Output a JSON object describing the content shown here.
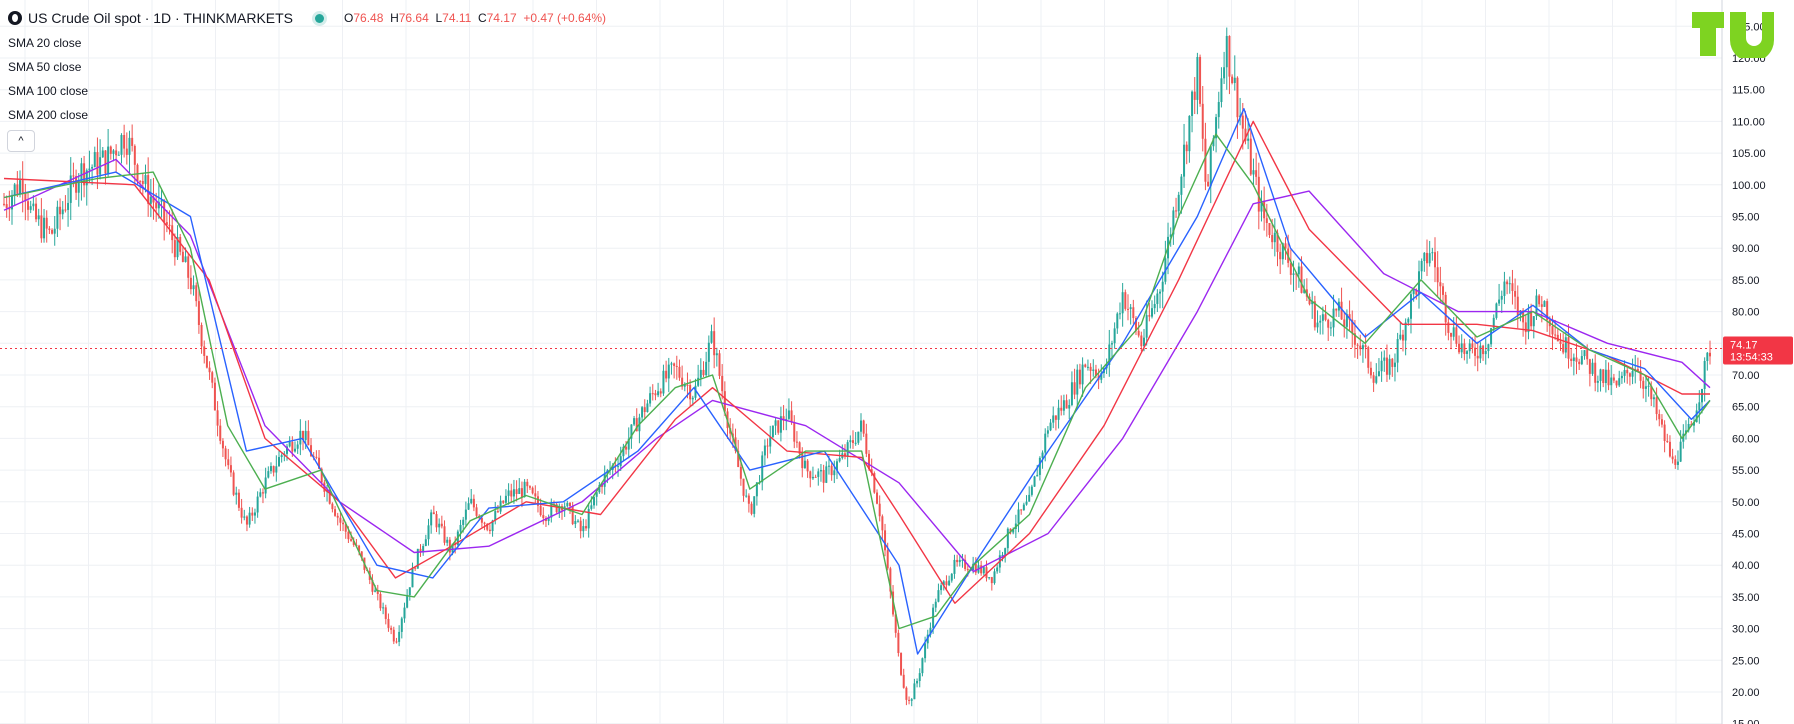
{
  "header": {
    "symbol_title": "US Crude Oil spot · 1D · THINKMARKETS",
    "o_label": "O",
    "o_value": "76.48",
    "h_label": "H",
    "h_value": "76.64",
    "l_label": "L",
    "l_value": "74.11",
    "c_label": "C",
    "c_value": "74.17",
    "change": "+0.47 (+0.64%)"
  },
  "indicators": [
    "SMA 20 close",
    "SMA 50 close",
    "SMA 100 close",
    "SMA 200 close"
  ],
  "collapse_label": "^",
  "price_label": {
    "value": "74.17",
    "countdown": "13:54:33"
  },
  "colors": {
    "up": "#26a69a",
    "down": "#ef5350",
    "sma20": "#4caf50",
    "sma50": "#2962ff",
    "sma100": "#f23645",
    "sma200": "#9c27f0",
    "price_line": "#f23645",
    "grid": "#eef0f4",
    "accent_logo": "#7ed321"
  },
  "logo_icon": "tradingview-logo-icon",
  "chart_data": {
    "type": "line",
    "y_axis": {
      "min": 15,
      "max": 125,
      "step": 5,
      "decimals": 2,
      "position": "right"
    },
    "grid": true,
    "current_price": 74.17,
    "price_path": [
      [
        0,
        97
      ],
      [
        2,
        101
      ],
      [
        3,
        95
      ],
      [
        5,
        92
      ],
      [
        8,
        102
      ],
      [
        11,
        104
      ],
      [
        13,
        108
      ],
      [
        15,
        100
      ],
      [
        17,
        95
      ],
      [
        20,
        85
      ],
      [
        22,
        70
      ],
      [
        24,
        55
      ],
      [
        26,
        46
      ],
      [
        28,
        53
      ],
      [
        30,
        58
      ],
      [
        32,
        61
      ],
      [
        34,
        54
      ],
      [
        36,
        47
      ],
      [
        38,
        42
      ],
      [
        40,
        35
      ],
      [
        42,
        28
      ],
      [
        44,
        40
      ],
      [
        46,
        48
      ],
      [
        48,
        42
      ],
      [
        50,
        50
      ],
      [
        52,
        46
      ],
      [
        54,
        51
      ],
      [
        56,
        52
      ],
      [
        58,
        48
      ],
      [
        60,
        50
      ],
      [
        62,
        45
      ],
      [
        64,
        53
      ],
      [
        66,
        57
      ],
      [
        68,
        63
      ],
      [
        70,
        68
      ],
      [
        72,
        71
      ],
      [
        74,
        67
      ],
      [
        76,
        76
      ],
      [
        78,
        60
      ],
      [
        80,
        48
      ],
      [
        82,
        60
      ],
      [
        84,
        64
      ],
      [
        86,
        55
      ],
      [
        88,
        54
      ],
      [
        90,
        57
      ],
      [
        92,
        62
      ],
      [
        94,
        48
      ],
      [
        96,
        25
      ],
      [
        97,
        18
      ],
      [
        98,
        22
      ],
      [
        100,
        35
      ],
      [
        102,
        40
      ],
      [
        104,
        40
      ],
      [
        106,
        38
      ],
      [
        108,
        46
      ],
      [
        110,
        50
      ],
      [
        112,
        62
      ],
      [
        114,
        66
      ],
      [
        116,
        72
      ],
      [
        118,
        70
      ],
      [
        120,
        83
      ],
      [
        122,
        75
      ],
      [
        124,
        84
      ],
      [
        126,
        100
      ],
      [
        128,
        118
      ],
      [
        129,
        98
      ],
      [
        131,
        123
      ],
      [
        133,
        108
      ],
      [
        135,
        95
      ],
      [
        137,
        90
      ],
      [
        139,
        85
      ],
      [
        141,
        78
      ],
      [
        143,
        80
      ],
      [
        145,
        76
      ],
      [
        147,
        70
      ],
      [
        149,
        72
      ],
      [
        151,
        82
      ],
      [
        153,
        90
      ],
      [
        155,
        78
      ],
      [
        157,
        73
      ],
      [
        159,
        75
      ],
      [
        161,
        85
      ],
      [
        163,
        78
      ],
      [
        165,
        82
      ],
      [
        167,
        75
      ],
      [
        169,
        73
      ],
      [
        171,
        70
      ],
      [
        173,
        68
      ],
      [
        175,
        72
      ],
      [
        177,
        65
      ],
      [
        179,
        56
      ],
      [
        181,
        62
      ],
      [
        183,
        74.17
      ]
    ],
    "sma20": [
      [
        0,
        98
      ],
      [
        10,
        101
      ],
      [
        16,
        102
      ],
      [
        20,
        90
      ],
      [
        24,
        62
      ],
      [
        28,
        52
      ],
      [
        34,
        55
      ],
      [
        40,
        36
      ],
      [
        44,
        35
      ],
      [
        50,
        47
      ],
      [
        56,
        51
      ],
      [
        62,
        48
      ],
      [
        68,
        62
      ],
      [
        72,
        68
      ],
      [
        76,
        70
      ],
      [
        80,
        52
      ],
      [
        86,
        58
      ],
      [
        92,
        58
      ],
      [
        96,
        30
      ],
      [
        100,
        32
      ],
      [
        104,
        40
      ],
      [
        110,
        48
      ],
      [
        116,
        68
      ],
      [
        122,
        78
      ],
      [
        126,
        95
      ],
      [
        130,
        108
      ],
      [
        134,
        100
      ],
      [
        140,
        82
      ],
      [
        146,
        75
      ],
      [
        152,
        85
      ],
      [
        158,
        76
      ],
      [
        164,
        80
      ],
      [
        170,
        74
      ],
      [
        176,
        70
      ],
      [
        180,
        60
      ],
      [
        183,
        66
      ]
    ],
    "sma50": [
      [
        0,
        98
      ],
      [
        12,
        102
      ],
      [
        20,
        95
      ],
      [
        26,
        58
      ],
      [
        32,
        60
      ],
      [
        40,
        40
      ],
      [
        46,
        38
      ],
      [
        52,
        49
      ],
      [
        60,
        50
      ],
      [
        68,
        58
      ],
      [
        74,
        68
      ],
      [
        80,
        55
      ],
      [
        88,
        58
      ],
      [
        96,
        40
      ],
      [
        98,
        26
      ],
      [
        104,
        40
      ],
      [
        112,
        58
      ],
      [
        120,
        75
      ],
      [
        128,
        95
      ],
      [
        133,
        112
      ],
      [
        138,
        90
      ],
      [
        146,
        76
      ],
      [
        152,
        83
      ],
      [
        158,
        75
      ],
      [
        164,
        81
      ],
      [
        170,
        74
      ],
      [
        176,
        71
      ],
      [
        181,
        63
      ],
      [
        183,
        66
      ]
    ],
    "sma100": [
      [
        0,
        101
      ],
      [
        14,
        100
      ],
      [
        22,
        85
      ],
      [
        28,
        60
      ],
      [
        36,
        50
      ],
      [
        42,
        38
      ],
      [
        48,
        43
      ],
      [
        56,
        50
      ],
      [
        64,
        48
      ],
      [
        72,
        63
      ],
      [
        76,
        68
      ],
      [
        84,
        58
      ],
      [
        92,
        57
      ],
      [
        96,
        48
      ],
      [
        102,
        34
      ],
      [
        110,
        45
      ],
      [
        118,
        62
      ],
      [
        126,
        85
      ],
      [
        134,
        110
      ],
      [
        140,
        93
      ],
      [
        150,
        78
      ],
      [
        158,
        78
      ],
      [
        164,
        77
      ],
      [
        172,
        73
      ],
      [
        180,
        67
      ],
      [
        183,
        67
      ]
    ],
    "sma200": [
      [
        0,
        96
      ],
      [
        12,
        104
      ],
      [
        20,
        92
      ],
      [
        28,
        62
      ],
      [
        36,
        50
      ],
      [
        44,
        42
      ],
      [
        52,
        43
      ],
      [
        62,
        50
      ],
      [
        70,
        60
      ],
      [
        76,
        66
      ],
      [
        86,
        62
      ],
      [
        96,
        53
      ],
      [
        104,
        39
      ],
      [
        112,
        45
      ],
      [
        120,
        60
      ],
      [
        128,
        80
      ],
      [
        134,
        97
      ],
      [
        140,
        99
      ],
      [
        148,
        86
      ],
      [
        156,
        80
      ],
      [
        164,
        80
      ],
      [
        172,
        75
      ],
      [
        180,
        72
      ],
      [
        183,
        68
      ]
    ]
  }
}
